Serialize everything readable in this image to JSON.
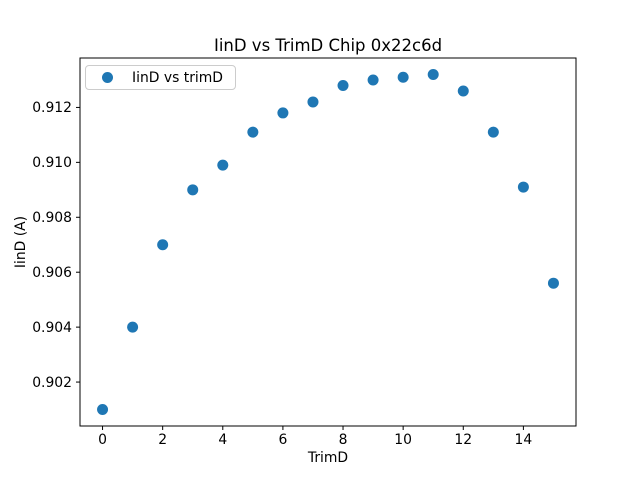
{
  "figure": {
    "background": "#ffffff",
    "axis_color": "#000000",
    "legend_border_color": "#cccccc"
  },
  "chart_data": {
    "type": "scatter",
    "title": "IinD vs TrimD Chip 0x22c6d",
    "xlabel": "TrimD",
    "ylabel": "IinD (A)",
    "legend_label": "IinD vs trimD",
    "legend_position": "upper left",
    "marker_color": "#1f77b4",
    "grid": false,
    "xlim": [
      -0.75,
      15.75
    ],
    "ylim": [
      0.9004,
      0.9138
    ],
    "xticks": [
      0,
      2,
      4,
      6,
      8,
      10,
      12,
      14
    ],
    "yticks": [
      0.902,
      0.904,
      0.906,
      0.908,
      0.91,
      0.912
    ],
    "series": [
      {
        "name": "IinD vs trimD",
        "x": [
          0,
          1,
          2,
          3,
          4,
          5,
          6,
          7,
          8,
          9,
          10,
          11,
          12,
          13,
          14,
          15
        ],
        "y": [
          0.901,
          0.904,
          0.907,
          0.909,
          0.9099,
          0.9111,
          0.9118,
          0.9122,
          0.9128,
          0.913,
          0.9131,
          0.9132,
          0.9126,
          0.9111,
          0.9091,
          0.9056
        ]
      }
    ]
  }
}
